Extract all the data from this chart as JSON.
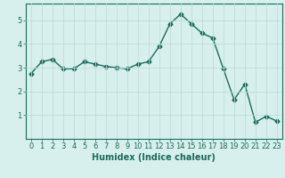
{
  "x": [
    0,
    1,
    2,
    3,
    4,
    5,
    6,
    7,
    8,
    9,
    10,
    11,
    12,
    13,
    14,
    15,
    16,
    17,
    18,
    19,
    20,
    21,
    22,
    23
  ],
  "y": [
    2.75,
    3.25,
    3.35,
    2.95,
    2.95,
    3.25,
    3.15,
    3.05,
    3.0,
    2.95,
    3.15,
    3.25,
    3.9,
    4.85,
    5.25,
    4.85,
    4.45,
    4.25,
    2.95,
    1.65,
    2.3,
    0.7,
    0.95,
    0.75
  ],
  "line_color": "#1a6b5a",
  "marker": "D",
  "marker_size": 2.5,
  "line_width": 1.0,
  "bg_color": "#d7f0ee",
  "grid_color": "#c0dbd8",
  "xlabel": "Humidex (Indice chaleur)",
  "xlabel_fontsize": 7,
  "tick_fontsize": 6,
  "ylim": [
    0,
    5.7
  ],
  "yticks": [
    1,
    2,
    3,
    4,
    5
  ],
  "xticks": [
    0,
    1,
    2,
    3,
    4,
    5,
    6,
    7,
    8,
    9,
    10,
    11,
    12,
    13,
    14,
    15,
    16,
    17,
    18,
    19,
    20,
    21,
    22,
    23
  ]
}
